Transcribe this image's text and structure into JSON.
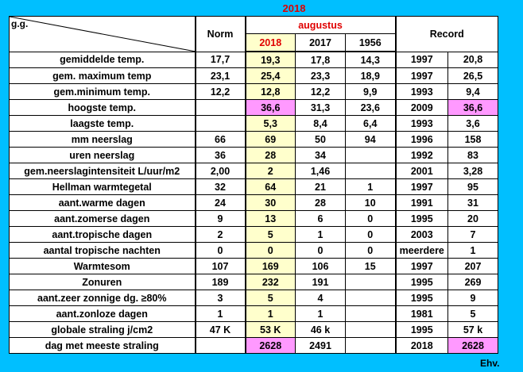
{
  "title": "2018",
  "footer": "Ehv.",
  "header": {
    "corner_label": "g.g.",
    "norm": "Norm",
    "month": "augustus",
    "years": [
      "2018",
      "2017",
      "1956"
    ],
    "record": "Record"
  },
  "rows": [
    {
      "label": "gemiddelde temp.",
      "norm": "17,7",
      "y2018": "19,3",
      "y2017": "17,8",
      "y1956": "14,3",
      "rec_year": "1997",
      "rec_val": "20,8"
    },
    {
      "label": "gem. maximum temp",
      "norm": "23,1",
      "y2018": "25,4",
      "y2017": "23,3",
      "y1956": "18,9",
      "rec_year": "1997",
      "rec_val": "26,5"
    },
    {
      "label": "gem.minimum temp.",
      "norm": "12,2",
      "y2018": "12,8",
      "y2017": "12,2",
      "y1956": "9,9",
      "rec_year": "1993",
      "rec_val": "9,4"
    },
    {
      "label": "hoogste temp.",
      "norm": "",
      "y2018": "36,6",
      "y2017": "31,3",
      "y1956": "23,6",
      "rec_year": "2009",
      "rec_val": "36,6",
      "highlight": true
    },
    {
      "label": "laagste temp.",
      "norm": "",
      "y2018": "5,3",
      "y2017": "8,4",
      "y1956": "6,4",
      "rec_year": "1993",
      "rec_val": "3,6"
    },
    {
      "label": "mm neerslag",
      "norm": "66",
      "y2018": "69",
      "y2017": "50",
      "y1956": "94",
      "rec_year": "1996",
      "rec_val": "158"
    },
    {
      "label": "uren neerslag",
      "norm": "36",
      "y2018": "28",
      "y2017": "34",
      "y1956": "",
      "rec_year": "1992",
      "rec_val": "83"
    },
    {
      "label": "gem.neerslagintensiteit L/uur/m2",
      "norm": "2,00",
      "y2018": "2",
      "y2017": "1,46",
      "y1956": "",
      "rec_year": "2001",
      "rec_val": "3,28"
    },
    {
      "label": "Hellman warmtegetal",
      "norm": "32",
      "y2018": "64",
      "y2017": "21",
      "y1956": "1",
      "rec_year": "1997",
      "rec_val": "95"
    },
    {
      "label": "aant.warme dagen",
      "norm": "24",
      "y2018": "30",
      "y2017": "28",
      "y1956": "10",
      "rec_year": "1991",
      "rec_val": "31"
    },
    {
      "label": "aant.zomerse dagen",
      "norm": "9",
      "y2018": "13",
      "y2017": "6",
      "y1956": "0",
      "rec_year": "1995",
      "rec_val": "20"
    },
    {
      "label": "aant.tropische dagen",
      "norm": "2",
      "y2018": "5",
      "y2017": "1",
      "y1956": "0",
      "rec_year": "2003",
      "rec_val": "7"
    },
    {
      "label": "aantal tropische nachten",
      "norm": "0",
      "y2018": "0",
      "y2017": "0",
      "y1956": "0",
      "rec_year": "meerdere",
      "rec_val": "1"
    },
    {
      "label": "Warmtesom",
      "norm": "107",
      "y2018": "169",
      "y2017": "106",
      "y1956": "15",
      "rec_year": "1997",
      "rec_val": "207"
    },
    {
      "label": "Zonuren",
      "norm": "189",
      "y2018": "232",
      "y2017": "191",
      "y1956": "",
      "rec_year": "1995",
      "rec_val": "269"
    },
    {
      "label": "aant.zeer zonnige dg. ≥80%",
      "norm": "3",
      "y2018": "5",
      "y2017": "4",
      "y1956": "",
      "rec_year": "1995",
      "rec_val": "9"
    },
    {
      "label": "aant.zonloze dagen",
      "norm": "1",
      "y2018": "1",
      "y2017": "1",
      "y1956": "",
      "rec_year": "1981",
      "rec_val": "5"
    },
    {
      "label": "globale straling j/cm2",
      "norm": "47 K",
      "y2018": "53 K",
      "y2017": "46 k",
      "y1956": "",
      "rec_year": "1995",
      "rec_val": "57 k"
    },
    {
      "label": "dag met meeste straling",
      "norm": "",
      "y2018": "2628",
      "y2017": "2491",
      "y1956": "",
      "rec_year": "2018",
      "rec_val": "2628",
      "highlight": true
    }
  ]
}
